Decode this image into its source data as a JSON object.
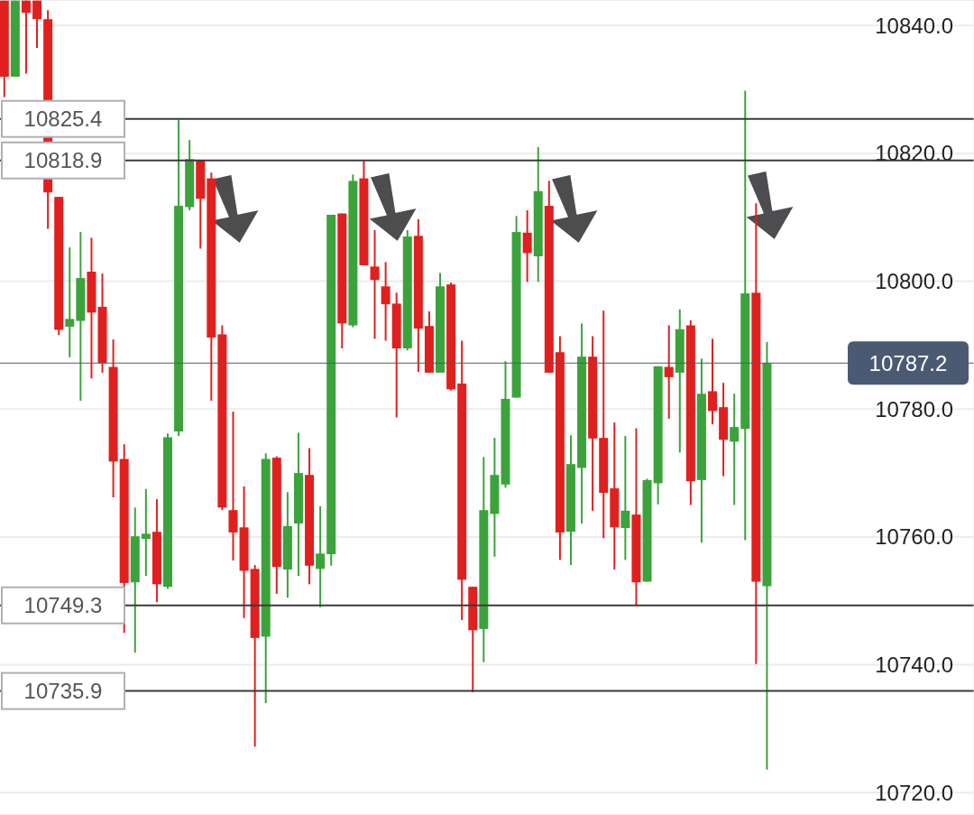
{
  "chart_data": {
    "type": "candlestick",
    "categories": [
      null,
      null,
      null,
      null,
      null,
      null,
      null,
      null,
      null,
      null,
      null,
      null,
      null,
      null,
      null,
      null,
      null,
      null,
      null,
      null,
      null,
      null,
      null,
      null,
      null,
      null,
      null,
      null,
      null,
      null,
      null,
      null,
      null,
      null,
      null,
      null,
      null,
      null,
      null,
      null,
      null,
      null,
      null,
      null,
      null,
      null,
      null,
      null,
      null,
      null,
      null,
      null,
      null,
      null,
      null,
      null,
      null,
      null,
      null,
      null,
      null,
      null,
      null,
      null,
      null,
      null,
      null,
      null,
      null,
      null,
      null
    ],
    "ohlc": [
      [
        10843.9,
        10843.9,
        10828.8,
        10832.0
      ],
      [
        10832.0,
        10843.9,
        10832.0,
        10843.9
      ],
      [
        10843.9,
        10843.9,
        10832.5,
        10842.0
      ],
      [
        10843.9,
        10843.9,
        10836.5,
        10841.0
      ],
      [
        10841.0,
        10842.4,
        10808.2,
        10813.9
      ],
      [
        10813.2,
        10813.2,
        10791.6,
        10792.4
      ],
      [
        10792.9,
        10805.3,
        10788.1,
        10794.1
      ],
      [
        10793.8,
        10807.7,
        10781.3,
        10800.5
      ],
      [
        10801.5,
        10806.8,
        10784.8,
        10795.1
      ],
      [
        10796.0,
        10801.2,
        10785.7,
        10787.2
      ],
      [
        10786.6,
        10790.9,
        10766.2,
        10771.8
      ],
      [
        10772.2,
        10774.5,
        10745.0,
        10752.8
      ],
      [
        10752.9,
        10764.6,
        10741.9,
        10760.1
      ],
      [
        10759.7,
        10767.5,
        10753.9,
        10760.5
      ],
      [
        10760.8,
        10765.9,
        10749.8,
        10752.6
      ],
      [
        10752.2,
        10776.2,
        10751.9,
        10775.6
      ],
      [
        10776.5,
        10825.3,
        10775.8,
        10811.8
      ],
      [
        10811.6,
        10822.1,
        10811.1,
        10819.1
      ],
      [
        10819.0,
        10819.0,
        10805.1,
        10812.9
      ],
      [
        10816.1,
        10817.0,
        10781.3,
        10791.2
      ],
      [
        10791.7,
        10793.1,
        10764.2,
        10764.6
      ],
      [
        10764.2,
        10779.6,
        10756.3,
        10760.7
      ],
      [
        10761.5,
        10767.9,
        10747.3,
        10754.7
      ],
      [
        10755.0,
        10755.6,
        10727.2,
        10744.2
      ],
      [
        10744.4,
        10773.1,
        10734.0,
        10772.2
      ],
      [
        10772.4,
        10772.6,
        10751.1,
        10755.3
      ],
      [
        10754.9,
        10767.0,
        10750.5,
        10761.7
      ],
      [
        10762.1,
        10776.3,
        10753.9,
        10770.0
      ],
      [
        10769.7,
        10773.9,
        10752.6,
        10755.5
      ],
      [
        10755.0,
        10764.8,
        10749.0,
        10757.4
      ],
      [
        10757.3,
        10810.4,
        10755.5,
        10810.4
      ],
      [
        10810.6,
        10810.6,
        10789.5,
        10793.4
      ],
      [
        10793.1,
        10816.7,
        10792.8,
        10815.7
      ],
      [
        10816.1,
        10818.8,
        10802.5,
        10802.5
      ],
      [
        10802.3,
        10808.0,
        10791.0,
        10800.2
      ],
      [
        10799.2,
        10803.0,
        10790.7,
        10796.4
      ],
      [
        10796.5,
        10798.2,
        10778.7,
        10789.5
      ],
      [
        10789.5,
        10808.0,
        10789.2,
        10807.0
      ],
      [
        10807.1,
        10809.7,
        10785.8,
        10792.6
      ],
      [
        10793.0,
        10795.3,
        10785.7,
        10785.7
      ],
      [
        10785.7,
        10801.3,
        10785.7,
        10799.2
      ],
      [
        10799.5,
        10799.8,
        10782.9,
        10783.1
      ],
      [
        10784.0,
        10790.7,
        10747.0,
        10753.3
      ],
      [
        10752.2,
        10752.2,
        10735.7,
        10745.4
      ],
      [
        10745.6,
        10772.5,
        10740.4,
        10764.2
      ],
      [
        10763.6,
        10775.5,
        10756.9,
        10769.7
      ],
      [
        10768.2,
        10787.5,
        10767.7,
        10781.6
      ],
      [
        10781.8,
        10810.2,
        10781.8,
        10807.7
      ],
      [
        10807.6,
        10811.1,
        10799.9,
        10804.4
      ],
      [
        10803.9,
        10821.0,
        10799.9,
        10814.1
      ],
      [
        10811.8,
        10815.7,
        10785.7,
        10785.7
      ],
      [
        10788.9,
        10791.4,
        10756.4,
        10760.7
      ],
      [
        10760.8,
        10775.9,
        10755.6,
        10771.4
      ],
      [
        10770.8,
        10793.4,
        10762.1,
        10788.2
      ],
      [
        10788.2,
        10791.4,
        10764.1,
        10775.4
      ],
      [
        10775.5,
        10795.4,
        10759.8,
        10766.9
      ],
      [
        10767.6,
        10777.9,
        10754.9,
        10761.5
      ],
      [
        10761.4,
        10775.8,
        10756.4,
        10764.1
      ],
      [
        10763.5,
        10777.0,
        10749.2,
        10752.9
      ],
      [
        10753.0,
        10769.1,
        10753.0,
        10768.9
      ],
      [
        10768.4,
        10786.7,
        10765.1,
        10786.7
      ],
      [
        10786.6,
        10793.1,
        10778.5,
        10785.0
      ],
      [
        10785.7,
        10795.6,
        10773.2,
        10792.5
      ],
      [
        10793.1,
        10793.9,
        10765.0,
        10768.7
      ],
      [
        10768.9,
        10787.9,
        10759.1,
        10782.4
      ],
      [
        10782.8,
        10791.0,
        10777.6,
        10779.7
      ],
      [
        10780.3,
        10784.1,
        10769.5,
        10775.2
      ],
      [
        10774.9,
        10782.4,
        10765.0,
        10777.2
      ],
      [
        10776.9,
        10829.8,
        10759.5,
        10798.1
      ],
      [
        10798.2,
        10812.2,
        10740.1,
        10753.0
      ],
      [
        10752.3,
        10790.5,
        10723.6,
        10787.2
      ]
    ],
    "colors": [
      "#e0201e",
      "#3ca33c",
      "#e0201e",
      "#e0201e",
      "#e0201e",
      "#e0201e",
      "#3ca33c",
      "#3ca33c",
      "#e0201e",
      "#e0201e",
      "#e0201e",
      "#e0201e",
      "#3ca33c",
      "#3ca33c",
      "#e0201e",
      "#3ca33c",
      "#3ca33c",
      "#3ca33c",
      "#e0201e",
      "#e0201e",
      "#e0201e",
      "#e0201e",
      "#e0201e",
      "#e0201e",
      "#3ca33c",
      "#e0201e",
      "#3ca33c",
      "#3ca33c",
      "#e0201e",
      "#3ca33c",
      "#3ca33c",
      "#e0201e",
      "#3ca33c",
      "#e0201e",
      "#e0201e",
      "#e0201e",
      "#e0201e",
      "#3ca33c",
      "#e0201e",
      "#e0201e",
      "#3ca33c",
      "#e0201e",
      "#e0201e",
      "#e0201e",
      "#3ca33c",
      "#3ca33c",
      "#3ca33c",
      "#3ca33c",
      "#e0201e",
      "#3ca33c",
      "#e0201e",
      "#e0201e",
      "#3ca33c",
      "#3ca33c",
      "#e0201e",
      "#e0201e",
      "#e0201e",
      "#3ca33c",
      "#e0201e",
      "#3ca33c",
      "#3ca33c",
      "#e0201e",
      "#3ca33c",
      "#e0201e",
      "#3ca33c",
      "#e0201e",
      "#e0201e",
      "#3ca33c",
      "#3ca33c",
      "#e0201e",
      "#3ca33c"
    ],
    "ylim": [
      10716.5,
      10844
    ],
    "yticks": [
      {
        "value": 10720,
        "label": "10720.0"
      },
      {
        "value": 10740,
        "label": "10740.0"
      },
      {
        "value": 10760,
        "label": "10760.0"
      },
      {
        "value": 10780,
        "label": "10780.0"
      },
      {
        "value": 10800,
        "label": "10800.0"
      },
      {
        "value": 10820,
        "label": "10820.0"
      },
      {
        "value": 10840,
        "label": "10840.0"
      }
    ],
    "grid": "y",
    "tick_labels": "y",
    "ref_lines": [
      {
        "axis": "y",
        "value": 10825.4,
        "label": "10825.4",
        "color": "#3a3a3a"
      },
      {
        "axis": "y",
        "value": 10818.9,
        "label": "10818.9",
        "color": "#3a3a3a"
      },
      {
        "axis": "y",
        "value": 10749.3,
        "label": "10749.3",
        "color": "#3a3a3a"
      },
      {
        "axis": "y",
        "value": 10735.9,
        "label": "10735.9",
        "color": "#3a3a3a"
      },
      {
        "axis": "y",
        "value": 10787.2,
        "label": "10787.2",
        "color": "#4a5a72"
      }
    ]
  }
}
